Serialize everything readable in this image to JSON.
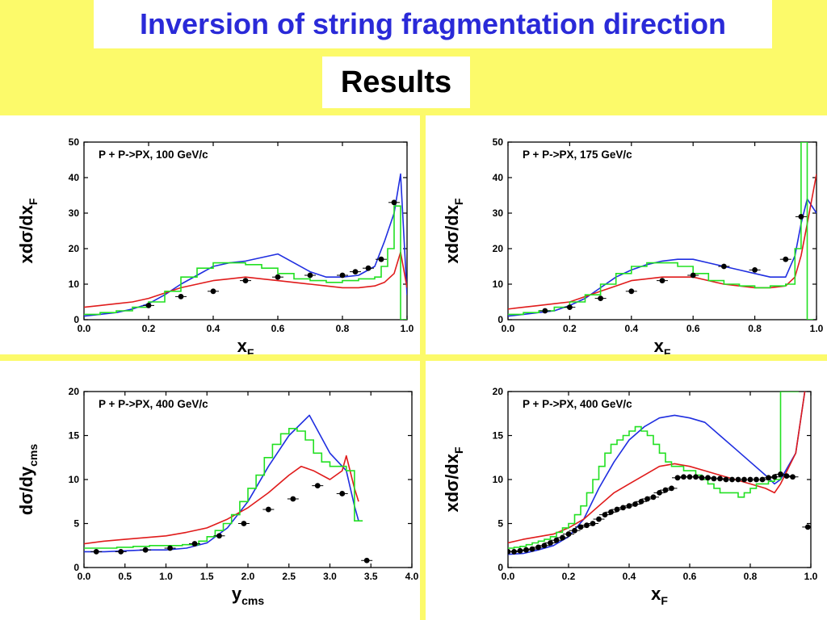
{
  "header": {
    "title": "Inversion of string fragmentation direction",
    "subtitle": "Results"
  },
  "colors": {
    "background": "#fcfa6a",
    "title": "#2a2ad8",
    "blue": "#1f2ee0",
    "red": "#e01b1b",
    "green": "#22e022",
    "points": "#000000"
  },
  "chart_data": [
    {
      "type": "line",
      "title": "P + P->PX, 100 GeV/c",
      "ylabel_main": "xdσ/dx",
      "ylabel_sub": "F",
      "xlabel_main": "x",
      "xlabel_sub": "F",
      "xlim": [
        0.0,
        1.0
      ],
      "ylim": [
        0,
        50
      ],
      "xticks": [
        "0.0",
        "0.2",
        "0.4",
        "0.6",
        "0.8",
        "1.0"
      ],
      "yticks": [
        "0",
        "10",
        "20",
        "30",
        "40",
        "50"
      ],
      "series": [
        {
          "color": "blue",
          "style": "line",
          "x": [
            0.0,
            0.05,
            0.1,
            0.15,
            0.2,
            0.25,
            0.3,
            0.35,
            0.4,
            0.45,
            0.5,
            0.55,
            0.6,
            0.65,
            0.7,
            0.75,
            0.8,
            0.85,
            0.9,
            0.93,
            0.96,
            0.98,
            1.0
          ],
          "y": [
            1,
            1.5,
            2,
            3,
            4.5,
            7,
            10,
            12.5,
            15,
            16,
            16.5,
            17.5,
            18.5,
            16,
            13.5,
            12,
            12,
            12.5,
            15,
            22,
            30,
            41,
            7
          ]
        },
        {
          "color": "red",
          "style": "line",
          "x": [
            0.0,
            0.05,
            0.1,
            0.15,
            0.2,
            0.25,
            0.3,
            0.35,
            0.4,
            0.45,
            0.5,
            0.55,
            0.6,
            0.65,
            0.7,
            0.75,
            0.8,
            0.85,
            0.9,
            0.93,
            0.96,
            0.98,
            1.0
          ],
          "y": [
            3.5,
            4,
            4.5,
            5,
            6,
            7.5,
            9,
            10,
            11,
            11.5,
            12,
            11.5,
            11,
            10.5,
            10,
            9.5,
            9,
            9,
            9.5,
            10.5,
            13,
            19,
            9
          ]
        },
        {
          "color": "green",
          "style": "step",
          "x": [
            0.0,
            0.05,
            0.1,
            0.15,
            0.2,
            0.25,
            0.3,
            0.35,
            0.4,
            0.45,
            0.5,
            0.55,
            0.6,
            0.65,
            0.7,
            0.75,
            0.8,
            0.85,
            0.9,
            0.92,
            0.94,
            0.96,
            0.98
          ],
          "y": [
            1.5,
            2,
            2.5,
            3.5,
            5,
            8,
            12,
            14.5,
            16,
            16,
            15.5,
            14.5,
            13,
            11.5,
            11,
            10.5,
            11,
            11.5,
            12,
            15,
            20,
            32,
            0
          ]
        },
        {
          "color": "points",
          "style": "points",
          "x": [
            0.2,
            0.3,
            0.4,
            0.5,
            0.6,
            0.7,
            0.8,
            0.84,
            0.88,
            0.92,
            0.96
          ],
          "y": [
            4,
            6.5,
            8,
            11,
            12,
            12.5,
            12.5,
            13.5,
            14.5,
            17,
            33
          ]
        }
      ]
    },
    {
      "type": "line",
      "title": "P + P->PX, 175 GeV/c",
      "ylabel_main": "xdσ/dx",
      "ylabel_sub": "F",
      "xlabel_main": "x",
      "xlabel_sub": "F",
      "xlim": [
        0.0,
        1.0
      ],
      "ylim": [
        0,
        50
      ],
      "xticks": [
        "0.0",
        "0.2",
        "0.4",
        "0.6",
        "0.8",
        "1.0"
      ],
      "yticks": [
        "0",
        "10",
        "20",
        "30",
        "40",
        "50"
      ],
      "series": [
        {
          "color": "blue",
          "style": "line",
          "x": [
            0.0,
            0.05,
            0.1,
            0.15,
            0.2,
            0.25,
            0.3,
            0.35,
            0.4,
            0.45,
            0.5,
            0.55,
            0.6,
            0.65,
            0.7,
            0.75,
            0.8,
            0.85,
            0.9,
            0.93,
            0.95,
            0.97,
            1.0
          ],
          "y": [
            1,
            1.5,
            2,
            2.5,
            4,
            6,
            9,
            12,
            14,
            15.5,
            16.5,
            17,
            17,
            16,
            15,
            14,
            13,
            12,
            12,
            18,
            27,
            34,
            30
          ]
        },
        {
          "color": "red",
          "style": "line",
          "x": [
            0.0,
            0.05,
            0.1,
            0.15,
            0.2,
            0.25,
            0.3,
            0.35,
            0.4,
            0.45,
            0.5,
            0.55,
            0.6,
            0.65,
            0.7,
            0.75,
            0.8,
            0.85,
            0.9,
            0.93,
            0.95,
            0.97,
            1.0
          ],
          "y": [
            3,
            3.5,
            4,
            4.5,
            5,
            6.5,
            8,
            9.5,
            11,
            11.5,
            12,
            12,
            12,
            11,
            10,
            9.5,
            9,
            9,
            9.5,
            12,
            18,
            27,
            41
          ]
        },
        {
          "color": "green",
          "style": "step",
          "x": [
            0.0,
            0.05,
            0.1,
            0.15,
            0.2,
            0.25,
            0.3,
            0.35,
            0.4,
            0.45,
            0.5,
            0.55,
            0.6,
            0.65,
            0.7,
            0.75,
            0.8,
            0.85,
            0.9,
            0.93,
            0.95,
            0.97
          ],
          "y": [
            1.5,
            2,
            2.5,
            3.5,
            5,
            7,
            10,
            13,
            15,
            16,
            16,
            15,
            13,
            11,
            10,
            9.5,
            9,
            9.5,
            10,
            20,
            50,
            0
          ]
        },
        {
          "color": "points",
          "style": "points",
          "x": [
            0.12,
            0.2,
            0.3,
            0.4,
            0.5,
            0.6,
            0.7,
            0.8,
            0.9,
            0.95
          ],
          "y": [
            2.5,
            3.5,
            6,
            8,
            11,
            12.5,
            15,
            14,
            17,
            29
          ]
        }
      ]
    },
    {
      "type": "line",
      "title": "P + P->PX, 400 GeV/c",
      "ylabel_main": "dσ/dy",
      "ylabel_sub": "cms",
      "xlabel_main": "y",
      "xlabel_sub": "cms",
      "xlim": [
        0.0,
        4.0
      ],
      "ylim": [
        0,
        20
      ],
      "xticks": [
        "0.0",
        "0.5",
        "1.0",
        "1.5",
        "2.0",
        "2.5",
        "3.0",
        "3.5",
        "4.0"
      ],
      "yticks": [
        "0",
        "5",
        "10",
        "15",
        "20"
      ],
      "series": [
        {
          "color": "blue",
          "style": "line",
          "x": [
            0.0,
            0.25,
            0.5,
            0.75,
            1.0,
            1.25,
            1.5,
            1.75,
            2.0,
            2.25,
            2.5,
            2.75,
            3.0,
            3.2,
            3.3,
            3.35
          ],
          "y": [
            1.8,
            1.8,
            1.9,
            2.0,
            2.0,
            2.2,
            2.8,
            4.5,
            7.5,
            11.5,
            15,
            17.3,
            13,
            11,
            7,
            5.3
          ]
        },
        {
          "color": "red",
          "style": "line",
          "x": [
            0.0,
            0.25,
            0.5,
            0.75,
            1.0,
            1.25,
            1.5,
            1.75,
            2.0,
            2.25,
            2.5,
            2.65,
            2.8,
            3.0,
            3.15,
            3.2,
            3.3,
            3.35
          ],
          "y": [
            2.7,
            3,
            3.2,
            3.4,
            3.6,
            4,
            4.5,
            5.5,
            6.8,
            8.5,
            10.5,
            11.5,
            11,
            10,
            11,
            12.7,
            9,
            7.5
          ]
        },
        {
          "color": "green",
          "style": "step",
          "x": [
            0,
            0.2,
            0.4,
            0.6,
            0.8,
            1.0,
            1.2,
            1.4,
            1.5,
            1.6,
            1.7,
            1.8,
            1.9,
            2.0,
            2.1,
            2.2,
            2.3,
            2.4,
            2.5,
            2.6,
            2.7,
            2.8,
            2.9,
            3.0,
            3.1,
            3.2,
            3.3
          ],
          "y": [
            2.2,
            2.2,
            2.3,
            2.4,
            2.5,
            2.5,
            2.6,
            3,
            3.5,
            4.2,
            5,
            6,
            7.5,
            9,
            10.5,
            12.5,
            14,
            15.2,
            15.8,
            15.5,
            14.5,
            13,
            12,
            11.5,
            11.5,
            11,
            5.3
          ]
        },
        {
          "color": "points",
          "style": "points",
          "x": [
            0.15,
            0.45,
            0.75,
            1.05,
            1.35,
            1.65,
            1.95,
            2.25,
            2.55,
            2.85,
            3.15,
            3.45
          ],
          "y": [
            1.8,
            1.8,
            2,
            2.2,
            2.7,
            3.6,
            5,
            6.6,
            7.8,
            9.3,
            8.4,
            0.8
          ]
        }
      ]
    },
    {
      "type": "line",
      "title": "P + P->PX, 400 GeV/c",
      "ylabel_main": "xdσ/dx",
      "ylabel_sub": "F",
      "xlabel_main": "x",
      "xlabel_sub": "F",
      "xlim": [
        0.0,
        1.0
      ],
      "ylim": [
        0,
        20
      ],
      "xticks": [
        "0.0",
        "0.2",
        "0.4",
        "0.6",
        "0.8",
        "1.0"
      ],
      "yticks": [
        "0",
        "5",
        "10",
        "15",
        "20"
      ],
      "series": [
        {
          "color": "blue",
          "style": "line",
          "x": [
            0.0,
            0.05,
            0.1,
            0.15,
            0.2,
            0.25,
            0.3,
            0.35,
            0.4,
            0.45,
            0.5,
            0.55,
            0.6,
            0.65,
            0.7,
            0.75,
            0.8,
            0.85,
            0.88,
            0.9,
            0.95,
            0.98
          ],
          "y": [
            1.5,
            1.6,
            2,
            2.5,
            3.5,
            5.5,
            9,
            12,
            14.5,
            16,
            17,
            17.3,
            17,
            16.5,
            15,
            13.5,
            12,
            10.5,
            9.5,
            10,
            13,
            20
          ]
        },
        {
          "color": "red",
          "style": "line",
          "x": [
            0.0,
            0.05,
            0.1,
            0.15,
            0.2,
            0.25,
            0.3,
            0.35,
            0.4,
            0.45,
            0.5,
            0.55,
            0.6,
            0.65,
            0.7,
            0.75,
            0.8,
            0.85,
            0.88,
            0.9,
            0.95,
            0.98
          ],
          "y": [
            2.8,
            3.2,
            3.5,
            3.8,
            4.5,
            5.5,
            7,
            8.5,
            9.5,
            10.5,
            11.5,
            11.8,
            11.5,
            11,
            10.5,
            10,
            9.5,
            9,
            8.5,
            9.5,
            13,
            20
          ]
        },
        {
          "color": "green",
          "style": "step",
          "x": [
            0,
            0.02,
            0.04,
            0.06,
            0.08,
            0.1,
            0.12,
            0.14,
            0.16,
            0.18,
            0.2,
            0.22,
            0.24,
            0.26,
            0.28,
            0.3,
            0.32,
            0.34,
            0.36,
            0.38,
            0.4,
            0.42,
            0.44,
            0.46,
            0.48,
            0.5,
            0.52,
            0.54,
            0.56,
            0.58,
            0.6,
            0.62,
            0.64,
            0.66,
            0.68,
            0.7,
            0.72,
            0.74,
            0.76,
            0.78,
            0.8,
            0.82,
            0.84,
            0.86,
            0.88,
            0.9,
            0.92,
            0.94
          ],
          "y": [
            2.2,
            2.3,
            2.4,
            2.6,
            2.8,
            3,
            3.2,
            3.5,
            4,
            4.5,
            5,
            6,
            7,
            8.5,
            10,
            11.5,
            13,
            14,
            14.5,
            15,
            15.5,
            16,
            15.5,
            15,
            14,
            13,
            12,
            11.5,
            11.5,
            11,
            11,
            10.5,
            10,
            9.5,
            9,
            8.5,
            8.5,
            8.5,
            8,
            8.5,
            9,
            9.5,
            9.5,
            9.8,
            10,
            20,
            20,
            20
          ]
        },
        {
          "color": "points",
          "style": "points",
          "x": [
            0.0,
            0.02,
            0.04,
            0.06,
            0.08,
            0.1,
            0.12,
            0.14,
            0.16,
            0.18,
            0.2,
            0.22,
            0.24,
            0.26,
            0.28,
            0.3,
            0.32,
            0.34,
            0.36,
            0.38,
            0.4,
            0.42,
            0.44,
            0.46,
            0.48,
            0.5,
            0.52,
            0.54,
            0.56,
            0.58,
            0.6,
            0.62,
            0.64,
            0.66,
            0.68,
            0.7,
            0.72,
            0.74,
            0.76,
            0.78,
            0.8,
            0.82,
            0.84,
            0.86,
            0.88,
            0.9,
            0.92,
            0.94,
            0.99
          ],
          "y": [
            1.8,
            1.8,
            1.9,
            2.0,
            2.1,
            2.3,
            2.5,
            2.8,
            3.1,
            3.4,
            3.8,
            4.2,
            4.6,
            4.8,
            5,
            5.5,
            6,
            6.3,
            6.6,
            6.8,
            7,
            7.2,
            7.5,
            7.8,
            8,
            8.5,
            8.8,
            9,
            10.2,
            10.3,
            10.3,
            10.3,
            10.2,
            10.2,
            10.1,
            10.1,
            10,
            10,
            10,
            10,
            10,
            10,
            10,
            10.2,
            10.3,
            10.6,
            10.4,
            10.3,
            4.6
          ]
        }
      ]
    }
  ]
}
